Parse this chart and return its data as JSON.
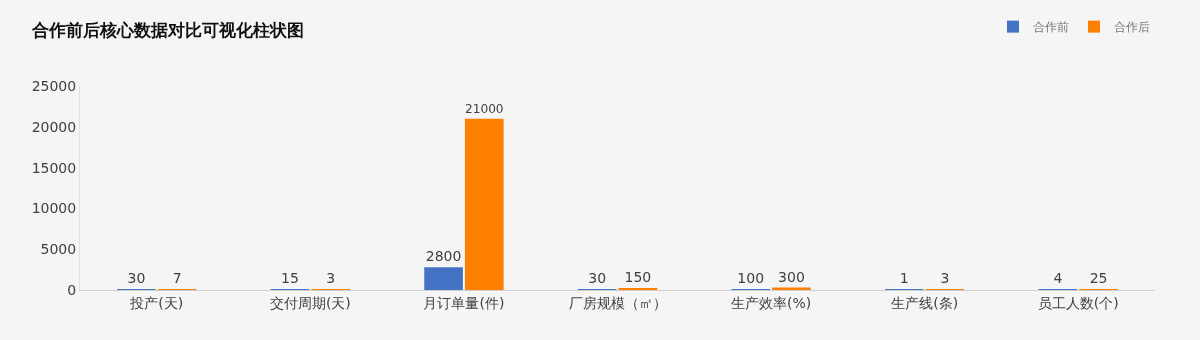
{
  "chart_data": {
    "type": "bar",
    "title": "合作前后核心数据对比可视化柱状图",
    "categories": [
      "投产(天)",
      "交付周期(天)",
      "月订单量(件)",
      "厂房规模（㎡）",
      "生产效率(%)",
      "生产线(条)",
      "员工人数(个)"
    ],
    "series": [
      {
        "name": "合作前",
        "color": "#4472c4",
        "values": [
          30,
          15,
          2800,
          30,
          100,
          1,
          4
        ]
      },
      {
        "name": "合作后",
        "color": "#ff7f00",
        "values": [
          7,
          3,
          21000,
          150,
          300,
          3,
          25
        ]
      }
    ],
    "ylim": [
      0,
      25000
    ],
    "yticks": [
      0,
      5000,
      10000,
      15000,
      20000,
      25000
    ],
    "data_labels": true,
    "grid": false,
    "legend": "top right"
  }
}
